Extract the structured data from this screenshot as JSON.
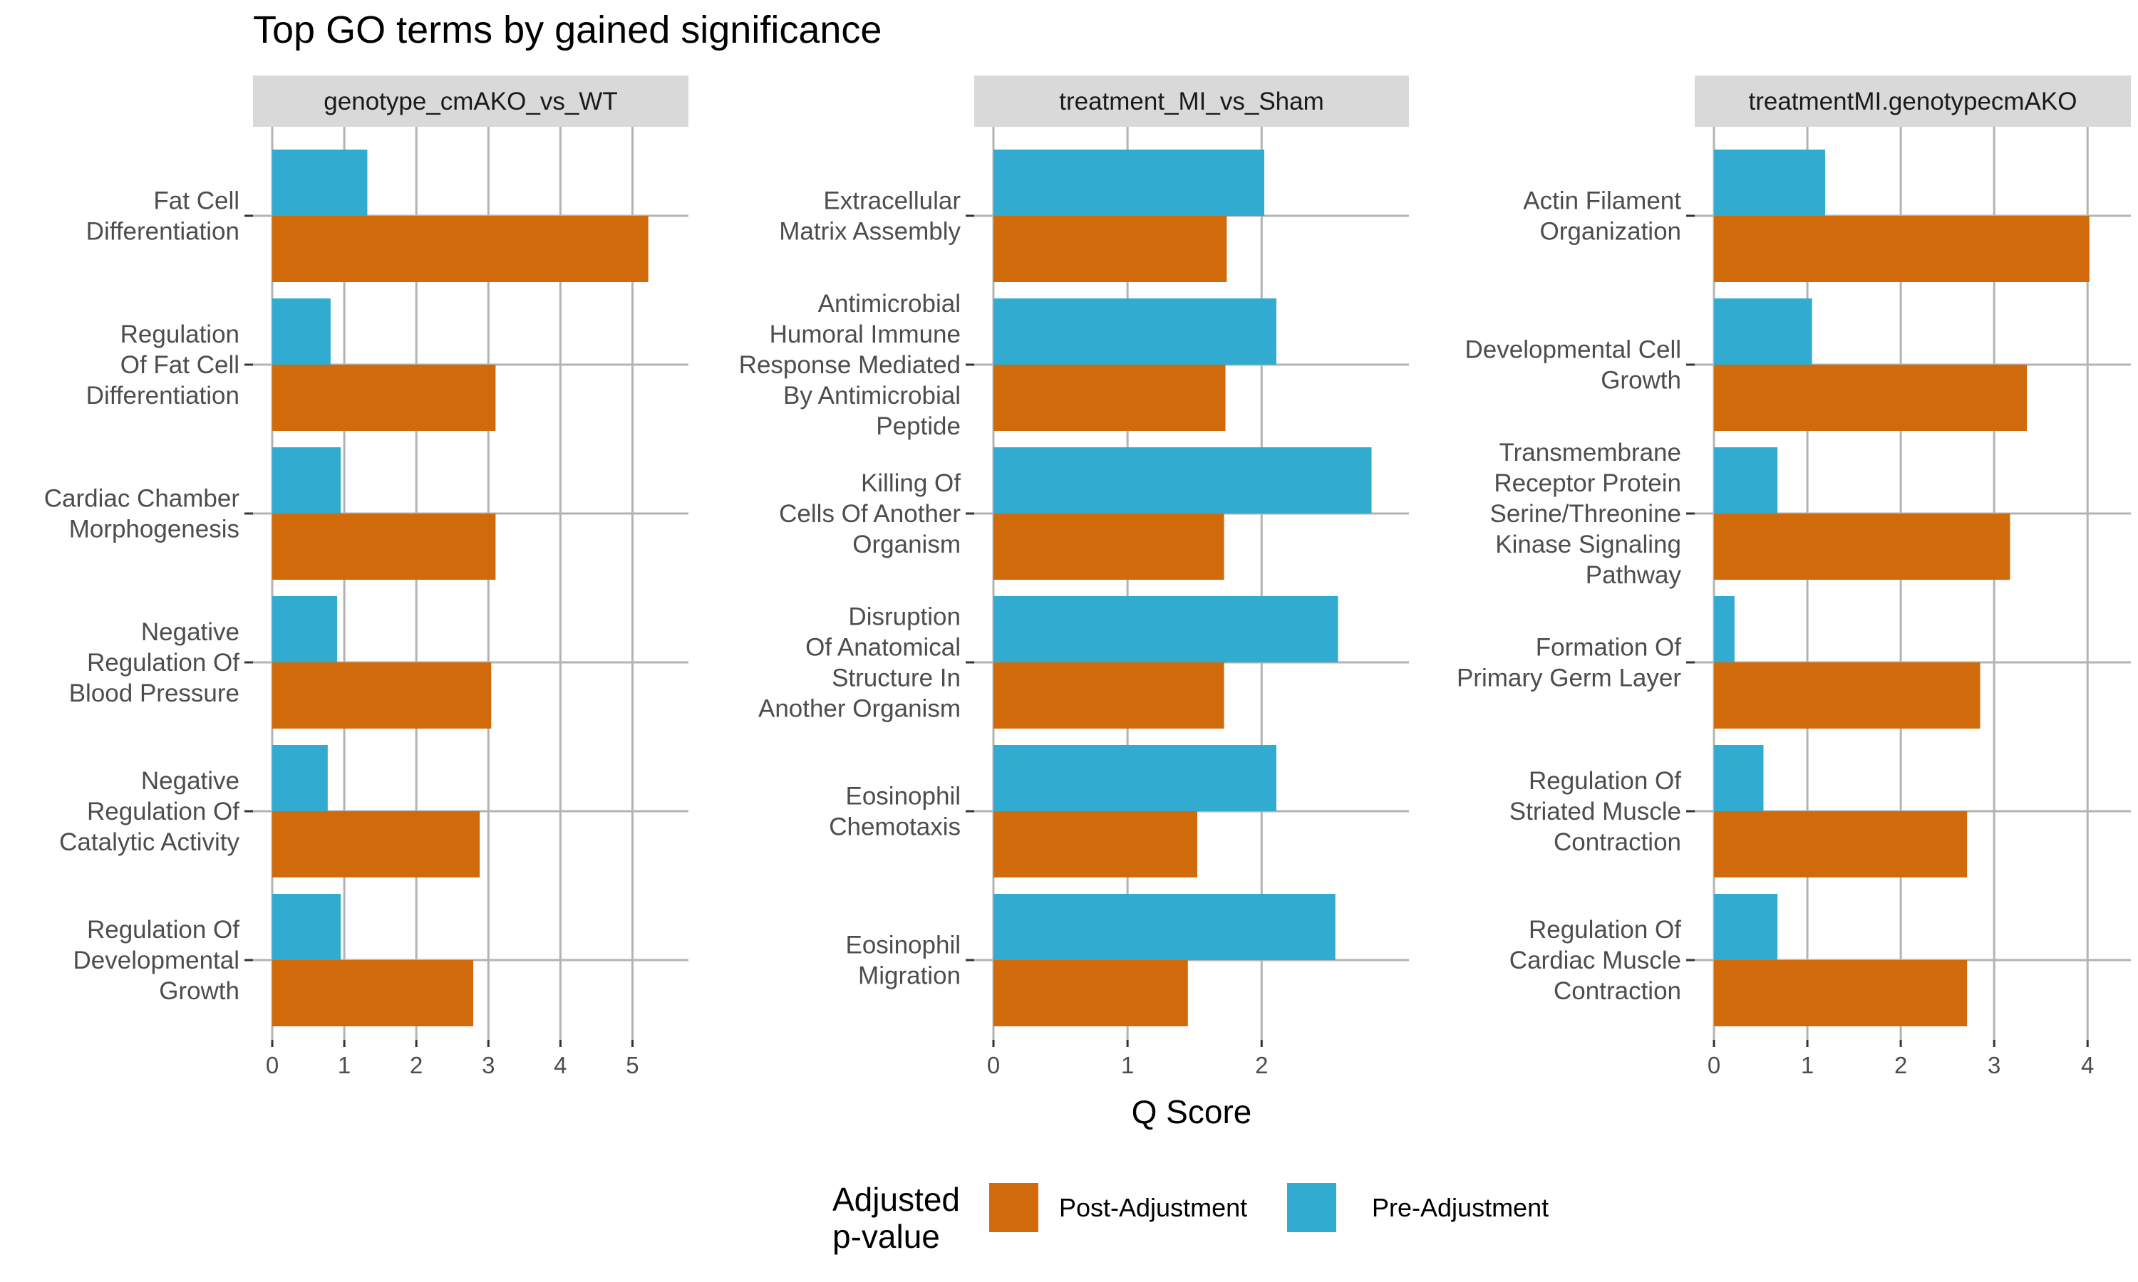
{
  "chart_data": {
    "type": "bar",
    "orientation": "horizontal",
    "title": "Top GO terms by gained significance",
    "xlabel": "Q Score",
    "legend": {
      "title_lines": [
        "Adjusted",
        "p-value"
      ],
      "position": "bottom",
      "entries": [
        {
          "name": "Post-Adjustment",
          "color": "#D16A0B"
        },
        {
          "name": "Pre-Adjustment",
          "color": "#31ABD0"
        }
      ]
    },
    "colors": {
      "post": "#D16A0B",
      "pre": "#31ABD0",
      "strip": "#D9D9D9",
      "grid": "#B3B3B3"
    },
    "grid": true,
    "panels": [
      {
        "strip": "genotype_cmAKO_vs_WT",
        "xlim": [
          0,
          5.5
        ],
        "ticks": [
          0,
          1,
          2,
          3,
          4,
          5
        ],
        "categories": [
          {
            "label_lines": [
              "Fat Cell",
              "Differentiation"
            ],
            "pre": 1.32,
            "post": 5.22
          },
          {
            "label_lines": [
              "Regulation",
              "Of Fat Cell",
              "Differentiation"
            ],
            "pre": 0.81,
            "post": 3.1
          },
          {
            "label_lines": [
              "Cardiac Chamber",
              "Morphogenesis"
            ],
            "pre": 0.95,
            "post": 3.1
          },
          {
            "label_lines": [
              "Negative",
              "Regulation Of",
              "Blood Pressure"
            ],
            "pre": 0.9,
            "post": 3.04
          },
          {
            "label_lines": [
              "Negative",
              "Regulation Of",
              "Catalytic Activity"
            ],
            "pre": 0.77,
            "post": 2.88
          },
          {
            "label_lines": [
              "Regulation Of",
              "Developmental",
              "Growth"
            ],
            "pre": 0.95,
            "post": 2.79
          }
        ]
      },
      {
        "strip": "treatment_MI_vs_Sham",
        "xlim": [
          0,
          2.95
        ],
        "ticks": [
          0,
          1,
          2
        ],
        "categories": [
          {
            "label_lines": [
              "Extracellular",
              "Matrix Assembly"
            ],
            "pre": 2.02,
            "post": 1.74
          },
          {
            "label_lines": [
              "Antimicrobial",
              "Humoral Immune",
              "Response Mediated",
              "By Antimicrobial",
              "Peptide"
            ],
            "pre": 2.11,
            "post": 1.73
          },
          {
            "label_lines": [
              "Killing Of",
              "Cells Of Another",
              "Organism"
            ],
            "pre": 2.82,
            "post": 1.72
          },
          {
            "label_lines": [
              "Disruption",
              "Of Anatomical",
              "Structure In",
              "Another Organism"
            ],
            "pre": 2.57,
            "post": 1.72
          },
          {
            "label_lines": [
              "Eosinophil",
              "Chemotaxis"
            ],
            "pre": 2.11,
            "post": 1.52
          },
          {
            "label_lines": [
              "Eosinophil",
              "Migration"
            ],
            "pre": 2.55,
            "post": 1.45
          }
        ]
      },
      {
        "strip": "treatmentMI.genotypecmAKO",
        "xlim": [
          0,
          4.25
        ],
        "ticks": [
          0,
          1,
          2,
          3,
          4
        ],
        "categories": [
          {
            "label_lines": [
              "Actin Filament",
              "Organization"
            ],
            "pre": 1.19,
            "post": 4.02
          },
          {
            "label_lines": [
              "Developmental Cell",
              "Growth"
            ],
            "pre": 1.05,
            "post": 3.35
          },
          {
            "label_lines": [
              "Transmembrane",
              "Receptor Protein",
              "Serine/Threonine",
              "Kinase Signaling",
              "Pathway"
            ],
            "pre": 0.68,
            "post": 3.17
          },
          {
            "label_lines": [
              "Formation Of",
              "Primary Germ Layer"
            ],
            "pre": 0.22,
            "post": 2.85
          },
          {
            "label_lines": [
              "Regulation Of",
              "Striated Muscle",
              "Contraction"
            ],
            "pre": 0.53,
            "post": 2.71
          },
          {
            "label_lines": [
              "Regulation Of",
              "Cardiac Muscle",
              "Contraction"
            ],
            "pre": 0.68,
            "post": 2.71
          }
        ]
      }
    ]
  }
}
